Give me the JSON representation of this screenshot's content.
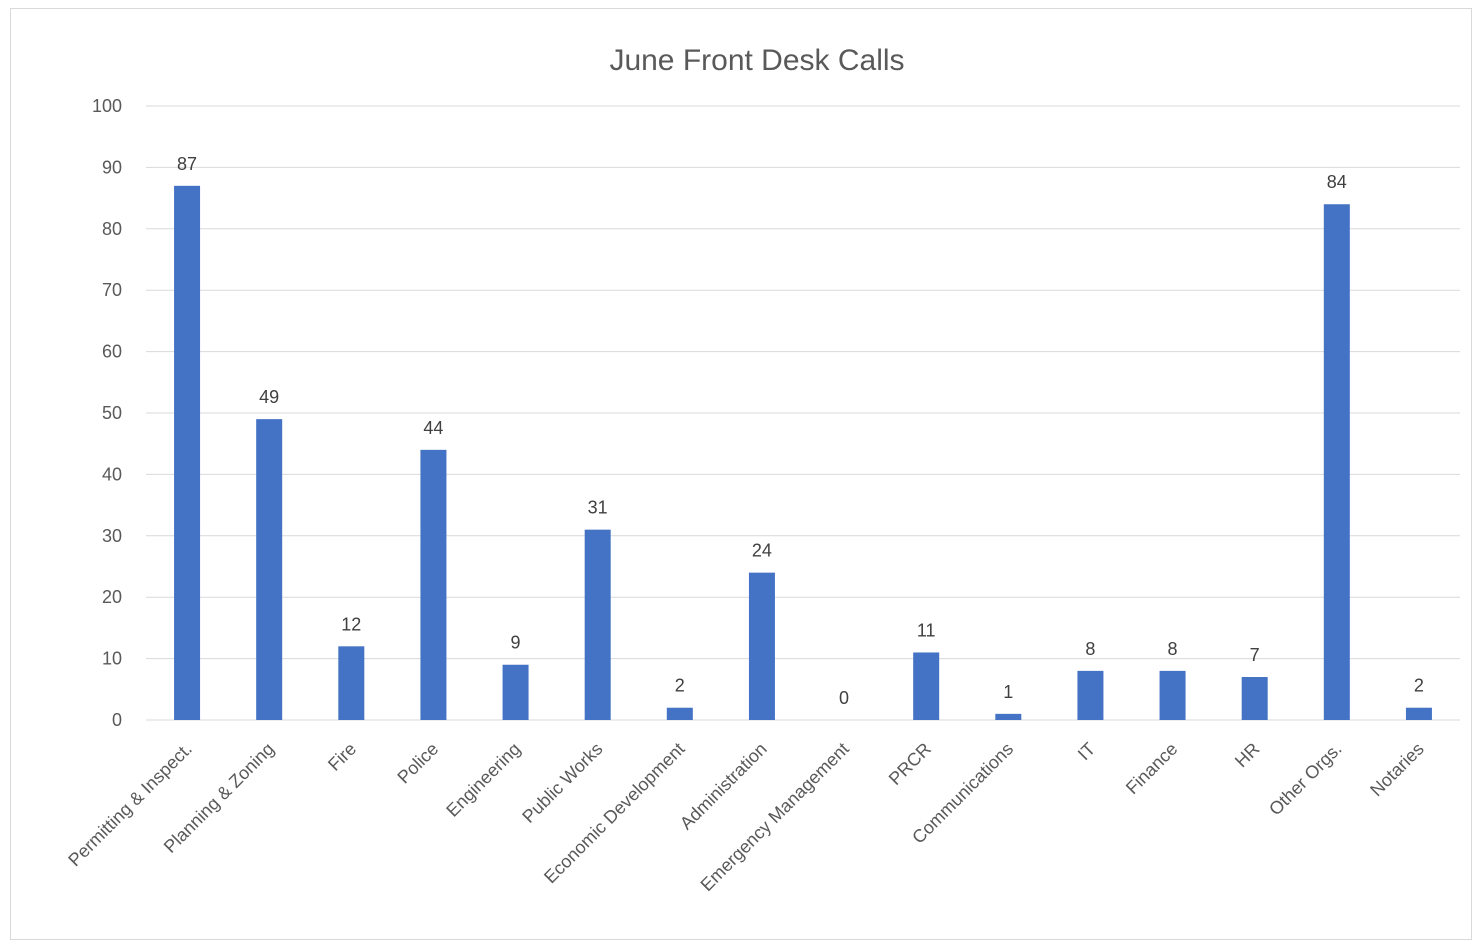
{
  "chart_data": {
    "type": "bar",
    "title": "June Front Desk Calls",
    "xlabel": "",
    "ylabel": "",
    "ylim": [
      0,
      100
    ],
    "ytick_step": 10,
    "grid": true,
    "legend": "none",
    "bar_color": "#4472C4",
    "categories": [
      "Permitting & Inspect.",
      "Planning & Zoning",
      "Fire",
      "Police",
      "Engineering",
      "Public Works",
      "Economic Development",
      "Administration",
      "Emergency Management",
      "PRCR",
      "Communications",
      "IT",
      "Finance",
      "HR",
      "Other Orgs.",
      "Notaries"
    ],
    "values": [
      87,
      49,
      12,
      44,
      9,
      31,
      2,
      24,
      0,
      11,
      1,
      8,
      8,
      7,
      84,
      2
    ]
  }
}
